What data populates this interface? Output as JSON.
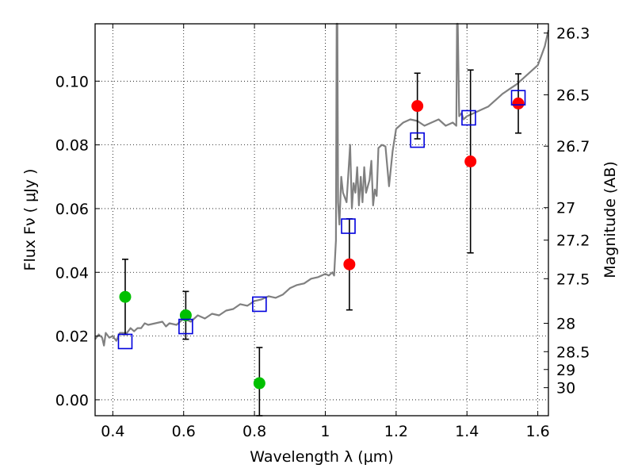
{
  "chart_data": {
    "type": "scatter",
    "xlabel": "Wavelength  λ (μm)",
    "ylabel": "Flux  Fν  ( μJy )",
    "ylabel_right": "Magnitude (AB)",
    "xlim": [
      0.35,
      1.63
    ],
    "ylim": [
      -0.005,
      0.118
    ],
    "grid": true,
    "xticks": [
      {
        "value": 0.4,
        "label": "0.4"
      },
      {
        "value": 0.6,
        "label": "0.6"
      },
      {
        "value": 0.8,
        "label": "0.8"
      },
      {
        "value": 1.0,
        "label": "1"
      },
      {
        "value": 1.2,
        "label": "1.2"
      },
      {
        "value": 1.4,
        "label": "1.4"
      },
      {
        "value": 1.6,
        "label": "1.6"
      }
    ],
    "yticks": [
      {
        "value": 0.0,
        "label": "0.00"
      },
      {
        "value": 0.02,
        "label": "0.02"
      },
      {
        "value": 0.04,
        "label": "0.04"
      },
      {
        "value": 0.06,
        "label": "0.06"
      },
      {
        "value": 0.08,
        "label": "0.08"
      },
      {
        "value": 0.1,
        "label": "0.10"
      }
    ],
    "right_ticks": [
      {
        "flux": 0.1151,
        "label": "26.3"
      },
      {
        "flux": 0.0957,
        "label": "26.5"
      },
      {
        "flux": 0.0796,
        "label": "26.7"
      },
      {
        "flux": 0.0603,
        "label": "27"
      },
      {
        "flux": 0.0501,
        "label": "27.2"
      },
      {
        "flux": 0.038,
        "label": "27.5"
      },
      {
        "flux": 0.024,
        "label": "28"
      },
      {
        "flux": 0.0151,
        "label": "28.5"
      },
      {
        "flux": 0.0095,
        "label": "29"
      },
      {
        "flux": 0.0038,
        "label": "30"
      }
    ],
    "series": [
      {
        "marker": "circle",
        "color": "#00c000",
        "points": [
          {
            "x": 0.435,
            "y": 0.0323,
            "err": 0.0118
          },
          {
            "x": 0.606,
            "y": 0.0265,
            "err": 0.0075
          },
          {
            "x": 0.814,
            "y": 0.0052,
            "err": 0.0112
          }
        ]
      },
      {
        "marker": "circle",
        "color": "#ff0000",
        "points": [
          {
            "x": 1.068,
            "y": 0.0425,
            "err": 0.0143
          },
          {
            "x": 1.26,
            "y": 0.0922,
            "err": 0.0103
          },
          {
            "x": 1.41,
            "y": 0.0748,
            "err": 0.0287
          },
          {
            "x": 1.545,
            "y": 0.093,
            "err": 0.0093
          }
        ]
      },
      {
        "marker": "square",
        "color": "#0000dd",
        "points": [
          {
            "x": 0.435,
            "y": 0.0183
          },
          {
            "x": 0.606,
            "y": 0.023
          },
          {
            "x": 0.814,
            "y": 0.03
          },
          {
            "x": 1.065,
            "y": 0.0545
          },
          {
            "x": 1.26,
            "y": 0.0815
          },
          {
            "x": 1.405,
            "y": 0.0885
          },
          {
            "x": 1.545,
            "y": 0.0948
          }
        ]
      }
    ],
    "model_spectrum": {
      "color": "#808080",
      "x": [
        0.35,
        0.36,
        0.37,
        0.375,
        0.38,
        0.39,
        0.4,
        0.41,
        0.42,
        0.44,
        0.45,
        0.46,
        0.47,
        0.48,
        0.49,
        0.5,
        0.52,
        0.54,
        0.55,
        0.56,
        0.58,
        0.6,
        0.62,
        0.64,
        0.66,
        0.68,
        0.7,
        0.72,
        0.74,
        0.76,
        0.78,
        0.8,
        0.82,
        0.84,
        0.86,
        0.88,
        0.9,
        0.92,
        0.94,
        0.96,
        0.98,
        1.0,
        1.01,
        1.02,
        1.025,
        1.03,
        1.032,
        1.034,
        1.036,
        1.04,
        1.045,
        1.05,
        1.06,
        1.07,
        1.075,
        1.08,
        1.085,
        1.09,
        1.095,
        1.1,
        1.105,
        1.11,
        1.115,
        1.12,
        1.125,
        1.13,
        1.135,
        1.14,
        1.145,
        1.15,
        1.16,
        1.17,
        1.18,
        1.19,
        1.2,
        1.21,
        1.22,
        1.24,
        1.26,
        1.28,
        1.3,
        1.32,
        1.34,
        1.36,
        1.37,
        1.372,
        1.374,
        1.378,
        1.385,
        1.39,
        1.4,
        1.42,
        1.44,
        1.46,
        1.48,
        1.5,
        1.52,
        1.54,
        1.56,
        1.58,
        1.6,
        1.61,
        1.62,
        1.63
      ],
      "y": [
        0.019,
        0.0205,
        0.0195,
        0.017,
        0.021,
        0.0195,
        0.02,
        0.0185,
        0.021,
        0.021,
        0.0225,
        0.0215,
        0.0225,
        0.0225,
        0.024,
        0.0235,
        0.024,
        0.0245,
        0.023,
        0.024,
        0.0235,
        0.0255,
        0.0245,
        0.0265,
        0.0255,
        0.027,
        0.0265,
        0.028,
        0.0285,
        0.03,
        0.0295,
        0.031,
        0.0315,
        0.0325,
        0.032,
        0.033,
        0.035,
        0.036,
        0.0365,
        0.038,
        0.0385,
        0.0395,
        0.039,
        0.04,
        0.039,
        0.05,
        0.118,
        0.118,
        0.062,
        0.055,
        0.07,
        0.065,
        0.062,
        0.08,
        0.06,
        0.068,
        0.065,
        0.073,
        0.061,
        0.07,
        0.062,
        0.073,
        0.065,
        0.067,
        0.069,
        0.075,
        0.061,
        0.066,
        0.064,
        0.079,
        0.08,
        0.0795,
        0.067,
        0.078,
        0.085,
        0.086,
        0.087,
        0.088,
        0.0875,
        0.086,
        0.087,
        0.088,
        0.086,
        0.087,
        0.086,
        0.118,
        0.118,
        0.089,
        0.09,
        0.088,
        0.089,
        0.09,
        0.091,
        0.092,
        0.094,
        0.096,
        0.0975,
        0.099,
        0.101,
        0.103,
        0.105,
        0.108,
        0.111,
        0.116
      ]
    }
  }
}
